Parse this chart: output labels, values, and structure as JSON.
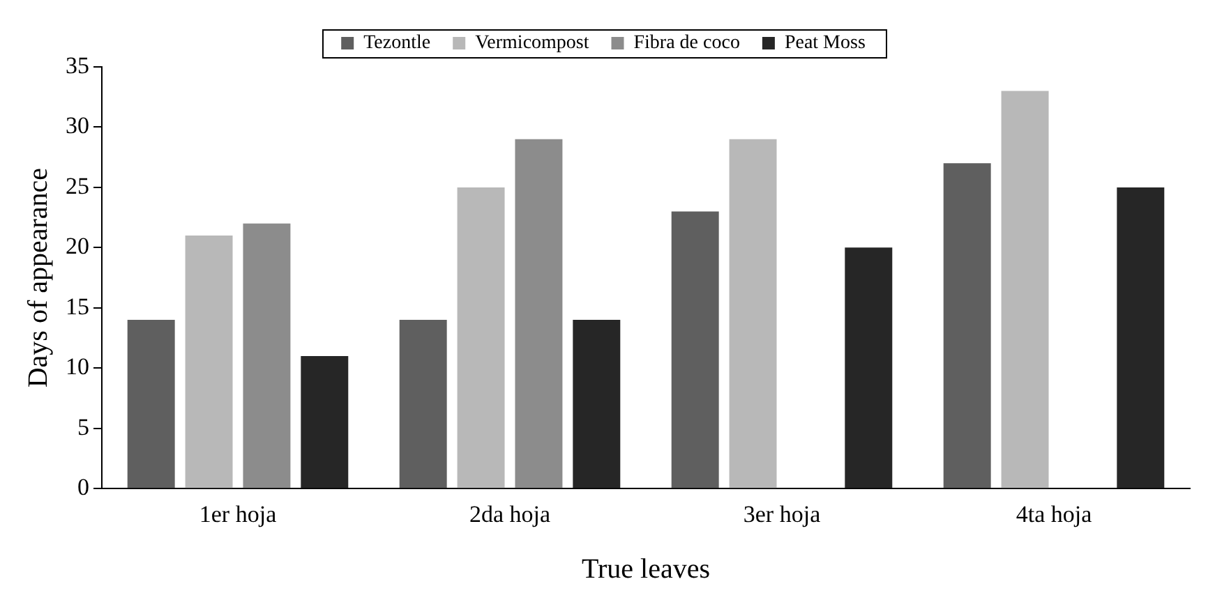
{
  "chart_data": {
    "type": "bar",
    "xlabel": "True leaves",
    "ylabel": "Days of appearance",
    "categories": [
      "1er hoja",
      "2da hoja",
      "3er hoja",
      "4ta hoja"
    ],
    "series": [
      {
        "name": "Tezontle",
        "color": "#5f5f5f",
        "values": [
          14,
          14,
          23,
          27
        ]
      },
      {
        "name": "Vermicompost",
        "color": "#b8b8b8",
        "values": [
          21,
          25,
          29,
          33
        ]
      },
      {
        "name": "Fibra de coco",
        "color": "#8c8c8c",
        "values": [
          22,
          29,
          null,
          null
        ]
      },
      {
        "name": "Peat Moss",
        "color": "#262626",
        "values": [
          11,
          14,
          20,
          25
        ]
      }
    ],
    "ylim": [
      0,
      35
    ],
    "yticks": [
      0,
      5,
      10,
      15,
      20,
      25,
      30,
      35
    ],
    "grid": false,
    "legend": "top"
  }
}
